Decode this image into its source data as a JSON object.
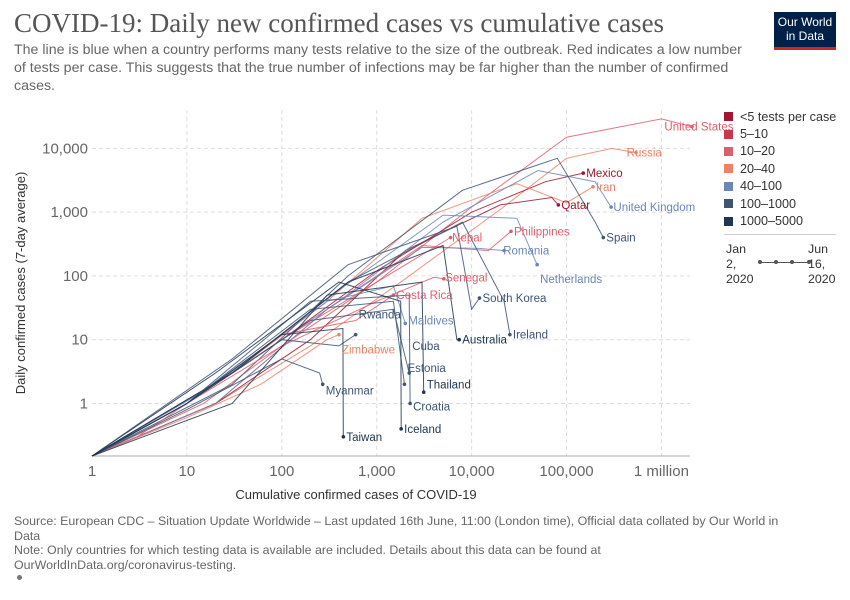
{
  "header": {
    "title": "COVID-19: Daily new confirmed cases vs cumulative cases",
    "subtitle": "The line is blue when a country performs many tests relative to the size of the outbreak. Red indicates a low number of tests per case. This suggests that the true number of infections may be far higher than the number of confirmed cases.",
    "logo_line1": "Our World",
    "logo_line2": "in Data"
  },
  "footer": {
    "source": "Source: European CDC – Situation Update Worldwide – Last updated 16th June, 11:00 (London time), Official data collated by Our World in Data",
    "note_line1": "Note: Only countries for which testing data is available are included. Details about this data can be found at",
    "note_line2": "OurWorldInData.org/coronavirus-testing."
  },
  "timeline": {
    "start_line1": "Jan",
    "start_line2": "2,",
    "start_line3": "2020",
    "end_line1": "Jun",
    "end_line2": "16,",
    "end_line3": "2020"
  },
  "colors": {
    "lt5": "#a2172f",
    "5to10": "#c8374b",
    "10to20": "#de5e6d",
    "20to40": "#ee8166",
    "40to100": "#6a87b8",
    "100to1000": "#3d5573",
    "1000to5000": "#1f3550"
  },
  "chart_data": {
    "type": "line",
    "xlabel": "Cumulative confirmed cases of COVID-19",
    "ylabel": "Daily confirmed cases (7-day average)",
    "x_scale": "log",
    "y_scale": "log",
    "xlim": [
      1,
      2000000
    ],
    "ylim": [
      0.15,
      40000
    ],
    "grid": true,
    "x_ticks": [
      {
        "value": 1,
        "label": "1"
      },
      {
        "value": 10,
        "label": "10"
      },
      {
        "value": 100,
        "label": "100"
      },
      {
        "value": 1000,
        "label": "1,000"
      },
      {
        "value": 10000,
        "label": "10,000"
      },
      {
        "value": 100000,
        "label": "100,000"
      },
      {
        "value": 1000000,
        "label": "1 million"
      }
    ],
    "y_ticks": [
      {
        "value": 1,
        "label": "1"
      },
      {
        "value": 10,
        "label": "10"
      },
      {
        "value": 100,
        "label": "100"
      },
      {
        "value": 1000,
        "label": "1,000"
      },
      {
        "value": 10000,
        "label": "10,000"
      }
    ],
    "legend_title": "",
    "legend": [
      {
        "label": "<5 tests per case",
        "color": "#a2172f"
      },
      {
        "label": "5–10",
        "color": "#c8374b"
      },
      {
        "label": "10–20",
        "color": "#de5e6d"
      },
      {
        "label": "20–40",
        "color": "#ee8166"
      },
      {
        "label": "40–100",
        "color": "#6a87b8"
      },
      {
        "label": "100–1000",
        "color": "#3d5573"
      },
      {
        "label": "1000–5000",
        "color": "#1f3550"
      }
    ],
    "series": [
      {
        "name": "United States",
        "color": "#de5e6d",
        "x": [
          1,
          15,
          100,
          1000,
          10000,
          100000,
          1000000,
          2100000
        ],
        "y": [
          0.15,
          1,
          8,
          80,
          1200,
          15000,
          29000,
          22000
        ]
      },
      {
        "name": "Russia",
        "color": "#ee8166",
        "x": [
          1,
          20,
          200,
          2000,
          20000,
          100000,
          300000,
          540000
        ],
        "y": [
          0.15,
          1,
          8,
          90,
          1100,
          7000,
          10000,
          8600
        ]
      },
      {
        "name": "Mexico",
        "color": "#a2172f",
        "x": [
          1,
          10,
          100,
          1000,
          10000,
          60000,
          150000
        ],
        "y": [
          0.15,
          1,
          10,
          120,
          1000,
          3000,
          4100
        ]
      },
      {
        "name": "Iran",
        "color": "#ee8166",
        "x": [
          1,
          30,
          300,
          3000,
          30000,
          100000,
          190000
        ],
        "y": [
          0.15,
          3,
          40,
          800,
          2800,
          1400,
          2500
        ]
      },
      {
        "name": "Qatar",
        "color": "#a2172f",
        "x": [
          1,
          20,
          200,
          2000,
          20000,
          70000,
          82000
        ],
        "y": [
          0.15,
          1,
          10,
          250,
          1300,
          1700,
          1300
        ]
      },
      {
        "name": "United Kingdom",
        "color": "#6a87b8",
        "x": [
          1,
          20,
          400,
          5000,
          50000,
          200000,
          295000
        ],
        "y": [
          0.15,
          2,
          40,
          700,
          4500,
          3000,
          1200
        ]
      },
      {
        "name": "Philippines",
        "color": "#de5e6d",
        "x": [
          1,
          20,
          300,
          3000,
          15000,
          26000
        ],
        "y": [
          0.15,
          1,
          30,
          300,
          250,
          500
        ]
      },
      {
        "name": "Spain",
        "color": "#3d5573",
        "x": [
          1,
          30,
          500,
          8000,
          80000,
          200000,
          244000
        ],
        "y": [
          0.15,
          2,
          100,
          2200,
          7000,
          700,
          400
        ]
      },
      {
        "name": "Nepal",
        "color": "#de5e6d",
        "x": [
          1,
          3,
          10,
          100,
          1000,
          6000
        ],
        "y": [
          0.15,
          0.3,
          1,
          10,
          80,
          400
        ]
      },
      {
        "name": "Romania",
        "color": "#6a87b8",
        "x": [
          1,
          20,
          300,
          3000,
          12000,
          22000
        ],
        "y": [
          0.15,
          1,
          30,
          280,
          270,
          250
        ]
      },
      {
        "name": "Senegal",
        "color": "#de5e6d",
        "x": [
          1,
          10,
          100,
          1000,
          4000,
          5100
        ],
        "y": [
          0.15,
          1,
          8,
          40,
          95,
          90
        ]
      },
      {
        "name": "Netherlands",
        "color": "#6a87b8",
        "x": [
          1,
          20,
          400,
          5000,
          30000,
          49000
        ],
        "y": [
          0.15,
          2,
          60,
          900,
          800,
          150
        ]
      },
      {
        "name": "Costa Rica",
        "color": "#de5e6d",
        "x": [
          1,
          10,
          100,
          600,
          1500
        ],
        "y": [
          0.15,
          1,
          12,
          20,
          50
        ]
      },
      {
        "name": "South Korea",
        "color": "#3d5573",
        "x": [
          1,
          30,
          500,
          7000,
          10000,
          12100
        ],
        "y": [
          0.15,
          5,
          150,
          600,
          30,
          45
        ]
      },
      {
        "name": "Rwanda",
        "color": "#3d5573",
        "x": [
          1,
          10,
          100,
          400,
          600
        ],
        "y": [
          0.15,
          1,
          10,
          8,
          12
        ]
      },
      {
        "name": "Maldives",
        "color": "#6a87b8",
        "x": [
          1,
          10,
          300,
          1500,
          2000
        ],
        "y": [
          0.15,
          1,
          40,
          70,
          18
        ]
      },
      {
        "name": "Ireland",
        "color": "#3d5573",
        "x": [
          1,
          30,
          500,
          8000,
          22000,
          25300
        ],
        "y": [
          0.15,
          3,
          80,
          700,
          40,
          12
        ]
      },
      {
        "name": "Cuba",
        "color": "#3d5573",
        "x": [
          1,
          10,
          200,
          1500,
          2200
        ],
        "y": [
          0.15,
          1,
          20,
          30,
          3
        ]
      },
      {
        "name": "Australia",
        "color": "#1f3550",
        "x": [
          1,
          30,
          500,
          5000,
          7000,
          7400
        ],
        "y": [
          0.15,
          3,
          80,
          300,
          10,
          10
        ]
      },
      {
        "name": "Zimbabwe",
        "color": "#ee8166",
        "x": [
          1,
          10,
          60,
          300,
          400
        ],
        "y": [
          0.15,
          0.6,
          2,
          10,
          12
        ]
      },
      {
        "name": "Estonia",
        "color": "#3d5573",
        "x": [
          1,
          10,
          200,
          1500,
          1960
        ],
        "y": [
          0.15,
          1,
          30,
          40,
          2
        ]
      },
      {
        "name": "Myanmar",
        "color": "#3d5573",
        "x": [
          1,
          10,
          100,
          250,
          270
        ],
        "y": [
          0.15,
          0.8,
          5,
          3,
          2
        ]
      },
      {
        "name": "Thailand",
        "color": "#1f3550",
        "x": [
          1,
          30,
          300,
          3000,
          3130
        ],
        "y": [
          0.15,
          1,
          50,
          80,
          1.5
        ]
      },
      {
        "name": "Croatia",
        "color": "#3d5573",
        "x": [
          1,
          10,
          200,
          2200,
          2250
        ],
        "y": [
          0.15,
          1,
          40,
          50,
          1
        ]
      },
      {
        "name": "Taiwan",
        "color": "#1f3550",
        "x": [
          1,
          10,
          100,
          440,
          445
        ],
        "y": [
          0.15,
          1,
          12,
          15,
          0.3
        ]
      },
      {
        "name": "Iceland",
        "color": "#1f3550",
        "x": [
          1,
          20,
          400,
          1790,
          1810
        ],
        "y": [
          0.15,
          3,
          80,
          40,
          0.4
        ]
      }
    ],
    "labels": [
      {
        "text": "United States",
        "x": 1000000,
        "y": 22000,
        "color": "#de5e6d"
      },
      {
        "text": "Russia",
        "x": 400000,
        "y": 8600,
        "color": "#ee8166"
      },
      {
        "text": "Mexico",
        "x": 150000,
        "y": 4100,
        "color": "#a2172f"
      },
      {
        "text": "Iran",
        "x": 190000,
        "y": 2500,
        "color": "#ee8166"
      },
      {
        "text": "Qatar",
        "x": 82000,
        "y": 1300,
        "color": "#a2172f"
      },
      {
        "text": "United Kingdom",
        "x": 290000,
        "y": 1200,
        "color": "#6a87b8"
      },
      {
        "text": "Philippines",
        "x": 26000,
        "y": 500,
        "color": "#de5e6d"
      },
      {
        "text": "Spain",
        "x": 244000,
        "y": 400,
        "color": "#3d5573"
      },
      {
        "text": "Nepal",
        "x": 5800,
        "y": 400,
        "color": "#de5e6d"
      },
      {
        "text": "Romania",
        "x": 20000,
        "y": 250,
        "color": "#6a87b8"
      },
      {
        "text": "Senegal",
        "x": 4900,
        "y": 95,
        "color": "#de5e6d"
      },
      {
        "text": "Netherlands",
        "x": 49000,
        "y": 90,
        "color": "#6a87b8"
      },
      {
        "text": "Costa Rica",
        "x": 1500,
        "y": 50,
        "color": "#de5e6d"
      },
      {
        "text": "South Korea",
        "x": 12100,
        "y": 45,
        "color": "#3d5573"
      },
      {
        "text": "Rwanda",
        "x": 600,
        "y": 25,
        "color": "#3d5573"
      },
      {
        "text": "Maldives",
        "x": 2000,
        "y": 20,
        "color": "#6a87b8"
      },
      {
        "text": "Ireland",
        "x": 25300,
        "y": 12,
        "color": "#3d5573"
      },
      {
        "text": "Cuba",
        "x": 2200,
        "y": 8,
        "color": "#3d5573"
      },
      {
        "text": "Australia",
        "x": 7400,
        "y": 10,
        "color": "#1f3550"
      },
      {
        "text": "Zimbabwe",
        "x": 400,
        "y": 7,
        "color": "#ee8166"
      },
      {
        "text": "Estonia",
        "x": 1960,
        "y": 3.6,
        "color": "#3d5573"
      },
      {
        "text": "Myanmar",
        "x": 270,
        "y": 1.6,
        "color": "#3d5573"
      },
      {
        "text": "Thailand",
        "x": 3130,
        "y": 2,
        "color": "#1f3550"
      },
      {
        "text": "Croatia",
        "x": 2250,
        "y": 0.9,
        "color": "#3d5573"
      },
      {
        "text": "Taiwan",
        "x": 445,
        "y": 0.3,
        "color": "#1f3550"
      },
      {
        "text": "Iceland",
        "x": 1810,
        "y": 0.4,
        "color": "#1f3550"
      }
    ]
  }
}
